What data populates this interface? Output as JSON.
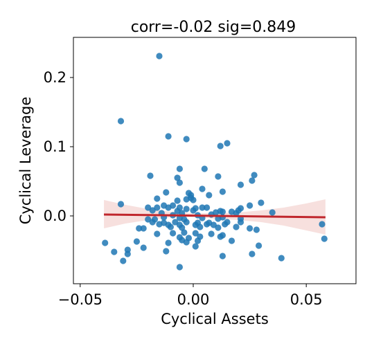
{
  "chart_data": {
    "type": "scatter",
    "title": "corr=-0.02 sig=0.849",
    "xlabel": "Cyclical Assets",
    "ylabel": "Cyclical Leverage",
    "xlim": [
      -0.053,
      0.072
    ],
    "ylim": [
      -0.098,
      0.258
    ],
    "xticks": [
      -0.05,
      0.0,
      0.05
    ],
    "xtick_labels": [
      "−0.05",
      "0.00",
      "0.05"
    ],
    "yticks": [
      0.0,
      0.1,
      0.2
    ],
    "ytick_labels": [
      "0.0",
      "0.1",
      "0.2"
    ],
    "grid": false,
    "colors": {
      "points": "#1f77b4",
      "fit": "#c0272d",
      "ci": "#d9635a"
    },
    "fit": {
      "x": [
        -0.0395,
        0.0585
      ],
      "y": [
        0.002,
        -0.002
      ]
    },
    "ci": {
      "x": [
        -0.0395,
        -0.03,
        -0.02,
        -0.01,
        0.0,
        0.01,
        0.02,
        0.03,
        0.04,
        0.05,
        0.0585
      ],
      "upper": [
        0.023,
        0.016,
        0.01,
        0.006,
        0.004,
        0.004,
        0.005,
        0.008,
        0.012,
        0.018,
        0.024
      ],
      "lower": [
        -0.018,
        -0.011,
        -0.006,
        -0.002,
        -0.002,
        -0.004,
        -0.006,
        -0.009,
        -0.014,
        -0.021,
        -0.027
      ]
    },
    "points": [
      [
        -0.015,
        0.231
      ],
      [
        -0.032,
        0.137
      ],
      [
        -0.011,
        0.115
      ],
      [
        -0.003,
        0.111
      ],
      [
        0.015,
        0.105
      ],
      [
        0.012,
        0.101
      ],
      [
        -0.006,
        0.068
      ],
      [
        0.005,
        0.068
      ],
      [
        0.027,
        0.059
      ],
      [
        -0.019,
        0.058
      ],
      [
        0.011,
        0.057
      ],
      [
        -0.007,
        0.055
      ],
      [
        0.026,
        0.051
      ],
      [
        -0.006,
        0.048
      ],
      [
        0.021,
        0.045
      ],
      [
        0.004,
        0.039
      ],
      [
        -0.012,
        0.034
      ],
      [
        0.013,
        0.035
      ],
      [
        -0.002,
        0.033
      ],
      [
        -0.001,
        0.03
      ],
      [
        0.007,
        0.03
      ],
      [
        -0.001,
        0.026
      ],
      [
        -0.016,
        0.025
      ],
      [
        -0.003,
        0.024
      ],
      [
        0.0,
        0.023
      ],
      [
        -0.007,
        0.022
      ],
      [
        0.03,
        0.019
      ],
      [
        -0.032,
        0.017
      ],
      [
        0.025,
        0.015
      ],
      [
        -0.013,
        0.015
      ],
      [
        -0.009,
        0.015
      ],
      [
        0.004,
        0.012
      ],
      [
        -0.02,
        0.012
      ],
      [
        -0.016,
        0.012
      ],
      [
        -0.011,
        0.012
      ],
      [
        -0.006,
        0.012
      ],
      [
        0.001,
        0.011
      ],
      [
        0.006,
        0.012
      ],
      [
        0.021,
        0.011
      ],
      [
        0.02,
        0.008
      ],
      [
        -0.003,
        0.01
      ],
      [
        -0.018,
        0.008
      ],
      [
        -0.007,
        0.007
      ],
      [
        0.0,
        0.008
      ],
      [
        0.012,
        0.007
      ],
      [
        0.017,
        0.006
      ],
      [
        0.035,
        0.005
      ],
      [
        -0.014,
        0.004
      ],
      [
        -0.005,
        0.004
      ],
      [
        0.01,
        0.005
      ],
      [
        0.013,
        0.006
      ],
      [
        0.019,
        0.004
      ],
      [
        0.008,
        0.002
      ],
      [
        -0.009,
        0.001
      ],
      [
        0.002,
        0.001
      ],
      [
        -0.013,
        -0.002
      ],
      [
        -0.006,
        -0.003
      ],
      [
        0.004,
        -0.003
      ],
      [
        0.013,
        -0.002
      ],
      [
        -0.02,
        -0.005
      ],
      [
        -0.017,
        -0.005
      ],
      [
        -0.004,
        -0.005
      ],
      [
        0.011,
        -0.004
      ],
      [
        0.021,
        -0.004
      ],
      [
        -0.018,
        -0.009
      ],
      [
        -0.013,
        -0.01
      ],
      [
        -0.008,
        -0.009
      ],
      [
        -0.003,
        -0.009
      ],
      [
        0.002,
        -0.01
      ],
      [
        0.007,
        -0.01
      ],
      [
        0.015,
        -0.009
      ],
      [
        0.021,
        -0.009
      ],
      [
        0.057,
        -0.012
      ],
      [
        -0.015,
        -0.012
      ],
      [
        -0.011,
        -0.013
      ],
      [
        -0.006,
        -0.013
      ],
      [
        0.001,
        -0.013
      ],
      [
        0.006,
        -0.012
      ],
      [
        0.009,
        -0.013
      ],
      [
        0.014,
        -0.012
      ],
      [
        -0.024,
        -0.018
      ],
      [
        -0.022,
        -0.018
      ],
      [
        -0.01,
        -0.016
      ],
      [
        -0.005,
        -0.017
      ],
      [
        0.003,
        -0.016
      ],
      [
        0.011,
        -0.017
      ],
      [
        0.019,
        -0.016
      ],
      [
        0.025,
        -0.018
      ],
      [
        0.028,
        -0.02
      ],
      [
        -0.016,
        -0.026
      ],
      [
        -0.009,
        -0.025
      ],
      [
        -0.004,
        -0.024
      ],
      [
        0.001,
        -0.025
      ],
      [
        0.008,
        -0.026
      ],
      [
        0.013,
        -0.028
      ],
      [
        -0.006,
        -0.031
      ],
      [
        -0.002,
        -0.032
      ],
      [
        0.003,
        -0.03
      ],
      [
        0.012,
        -0.03
      ],
      [
        -0.005,
        -0.035
      ],
      [
        0.002,
        -0.036
      ],
      [
        0.017,
        -0.036
      ],
      [
        0.058,
        -0.033
      ],
      [
        -0.039,
        -0.039
      ],
      [
        -0.025,
        -0.037
      ],
      [
        -0.011,
        -0.039
      ],
      [
        -0.003,
        -0.038
      ],
      [
        0.001,
        -0.044
      ],
      [
        0.029,
        -0.043
      ],
      [
        -0.022,
        -0.046
      ],
      [
        -0.029,
        -0.049
      ],
      [
        -0.035,
        -0.052
      ],
      [
        -0.012,
        -0.051
      ],
      [
        0.026,
        -0.055
      ],
      [
        -0.029,
        -0.055
      ],
      [
        0.013,
        -0.058
      ],
      [
        0.039,
        -0.061
      ],
      [
        -0.031,
        -0.065
      ],
      [
        -0.006,
        -0.074
      ]
    ]
  }
}
